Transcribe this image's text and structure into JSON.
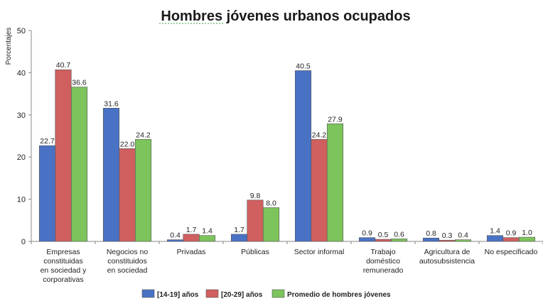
{
  "chart_data": {
    "type": "bar",
    "title": "Hombres jóvenes urbanos  ocupados",
    "ylabel": "Porcentajes",
    "xlabel": "",
    "ylim": [
      0,
      50
    ],
    "yticks": [
      0,
      10,
      20,
      30,
      40,
      50
    ],
    "grid": false,
    "legend_position": "bottom",
    "categories": [
      [
        "Empresas",
        "constituidas",
        "en sociedad y",
        "corporativas"
      ],
      [
        "Negocios no",
        "constituidos",
        "en sociedad"
      ],
      [
        "Privadas"
      ],
      [
        "Públicas"
      ],
      [
        "Sector informal"
      ],
      [
        "Trabajo",
        "doméstico",
        "remunerado"
      ],
      [
        "Agricultura de",
        "autosubsistencia"
      ],
      [
        "No especificado"
      ]
    ],
    "series": [
      {
        "name": "[14-19] años",
        "color": "#4a72c4",
        "values": [
          22.7,
          31.6,
          0.4,
          1.7,
          40.5,
          0.9,
          0.8,
          1.4
        ]
      },
      {
        "name": "[20-29] años",
        "color": "#d05f5f",
        "values": [
          40.7,
          22.0,
          1.7,
          9.8,
          24.2,
          0.5,
          0.3,
          0.9
        ]
      },
      {
        "name": "Promedio de hombres jóvenes",
        "color": "#7cc45b",
        "values": [
          36.6,
          24.2,
          1.4,
          8.0,
          27.9,
          0.6,
          0.4,
          1.0
        ]
      }
    ]
  }
}
